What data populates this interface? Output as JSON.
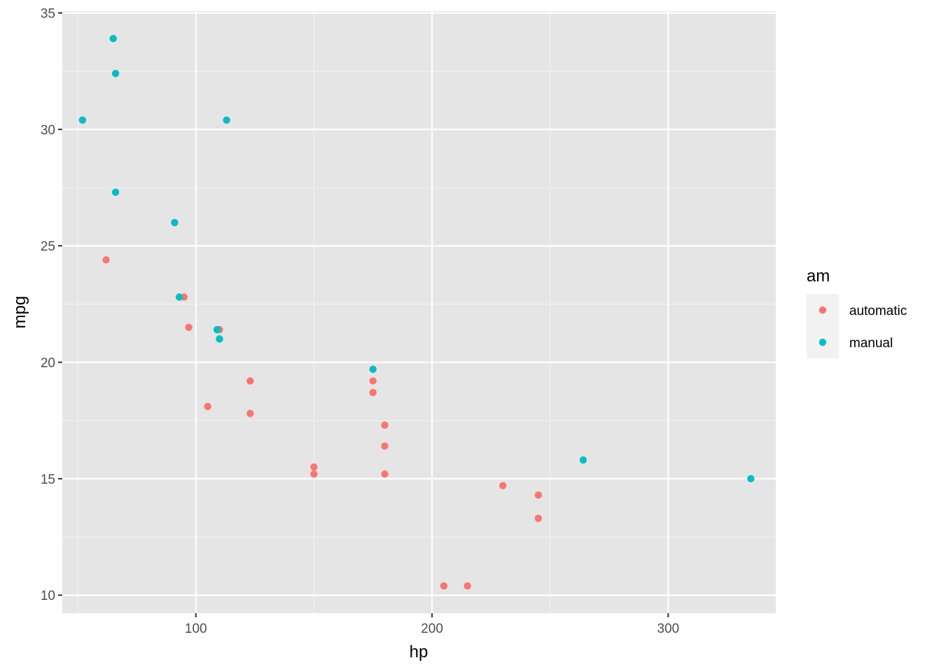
{
  "chart_data": {
    "type": "scatter",
    "xlabel": "hp",
    "ylabel": "mpg",
    "xlim": [
      43.45,
      345.55
    ],
    "ylim": [
      9.225,
      35.075
    ],
    "x_ticks": [
      100,
      200,
      300
    ],
    "x_minor_ticks": [
      50,
      150,
      250
    ],
    "y_ticks": [
      10,
      15,
      20,
      25,
      30,
      35
    ],
    "y_minor_ticks": [
      12.5,
      17.5,
      22.5,
      27.5,
      32.5
    ],
    "x_tick_labels": [
      "100",
      "200",
      "300"
    ],
    "y_tick_labels": [
      "10",
      "15",
      "20",
      "25",
      "30",
      "35"
    ],
    "grid": true,
    "background": "#e5e5e5",
    "legend": {
      "title": "am",
      "placement": "right"
    },
    "series": [
      {
        "name": "automatic",
        "color": "#f8766d",
        "points": [
          [
            110,
            21.4
          ],
          [
            175,
            18.7
          ],
          [
            105,
            18.1
          ],
          [
            245,
            14.3
          ],
          [
            62,
            24.4
          ],
          [
            95,
            22.8
          ],
          [
            123,
            19.2
          ],
          [
            123,
            17.8
          ],
          [
            180,
            16.4
          ],
          [
            180,
            17.3
          ],
          [
            180,
            15.2
          ],
          [
            205,
            10.4
          ],
          [
            215,
            10.4
          ],
          [
            230,
            14.7
          ],
          [
            97,
            21.5
          ],
          [
            150,
            15.5
          ],
          [
            150,
            15.2
          ],
          [
            245,
            13.3
          ],
          [
            175,
            19.2
          ]
        ]
      },
      {
        "name": "manual",
        "color": "#00bfc4",
        "points": [
          [
            110,
            21.0
          ],
          [
            110,
            21.0
          ],
          [
            93,
            22.8
          ],
          [
            66,
            32.4
          ],
          [
            52,
            30.4
          ],
          [
            65,
            33.9
          ],
          [
            66,
            27.3
          ],
          [
            91,
            26.0
          ],
          [
            113,
            30.4
          ],
          [
            264,
            15.8
          ],
          [
            175,
            19.7
          ],
          [
            335,
            15.0
          ],
          [
            109,
            21.4
          ]
        ]
      }
    ]
  }
}
